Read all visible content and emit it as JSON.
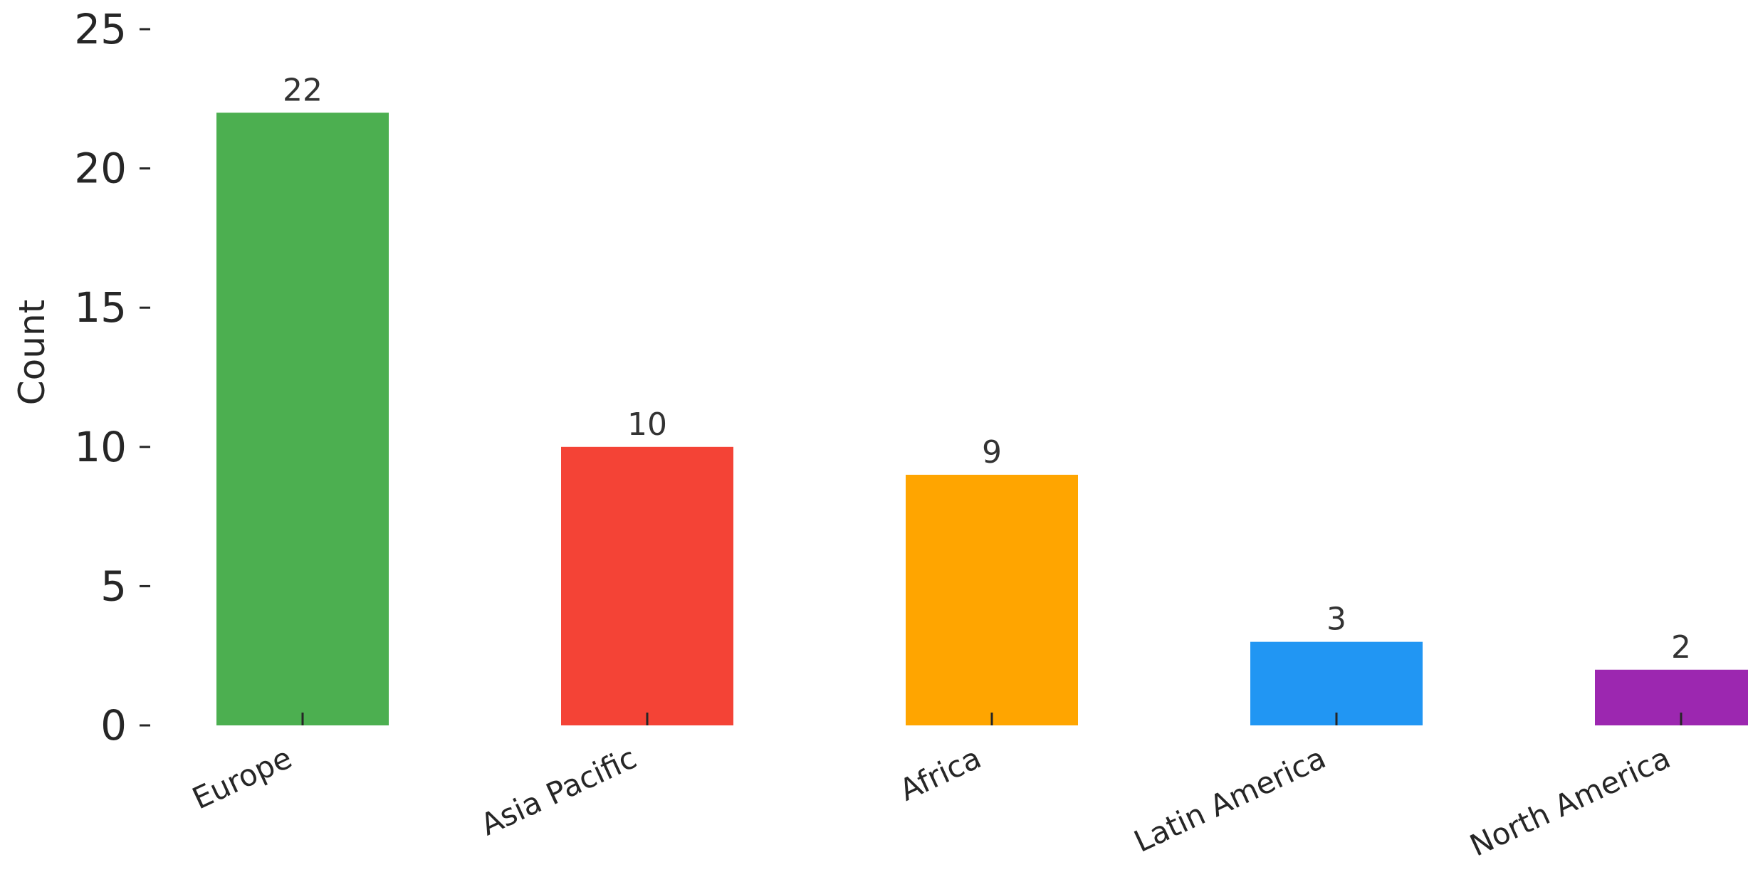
{
  "chart_data": {
    "type": "bar",
    "title": "",
    "xlabel": "",
    "ylabel": "Count",
    "ylim": [
      0,
      25
    ],
    "yticks": [
      0,
      5,
      10,
      15,
      20,
      25
    ],
    "grid": false,
    "categories": [
      "Europe",
      "Asia Pacific",
      "Africa",
      "Latin America",
      "North America"
    ],
    "values": [
      22,
      10,
      9,
      3,
      2
    ],
    "colors": [
      "#4caf50",
      "#f44336",
      "#ffa500",
      "#2196f3",
      "#9c27b0"
    ],
    "data_labels": [
      "22",
      "10",
      "9",
      "3",
      "2"
    ]
  }
}
